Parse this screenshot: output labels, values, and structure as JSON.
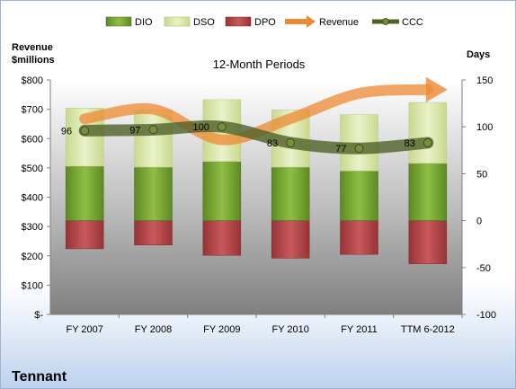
{
  "company": "Tennant",
  "chart_data": {
    "type": "bar",
    "title": "12-Month Periods",
    "left_axis": {
      "label_line1": "Revenue",
      "label_line2": "$millions",
      "ylim": [
        0,
        800
      ],
      "ticks": [
        "$-",
        "$100",
        "$200",
        "$300",
        "$400",
        "$500",
        "$600",
        "$700",
        "$800"
      ]
    },
    "right_axis": {
      "label": "Days",
      "ylim": [
        -100,
        150
      ],
      "ticks": [
        "-100",
        "-50",
        "0",
        "50",
        "100",
        "150"
      ]
    },
    "categories": [
      "FY 2007",
      "FY 2008",
      "FY 2009",
      "FY 2010",
      "FY 2011",
      "TTM 6-2012"
    ],
    "series": [
      {
        "name": "DIO",
        "axis": "days",
        "values": [
          58,
          57,
          63,
          57,
          53,
          61
        ]
      },
      {
        "name": "DSO",
        "axis": "days",
        "values": [
          62,
          61,
          66,
          61,
          60,
          65
        ]
      },
      {
        "name": "DPO",
        "axis": "days",
        "values": [
          -30,
          -26,
          -37,
          -40,
          -36,
          -46
        ]
      },
      {
        "name": "Revenue",
        "axis": "revenue",
        "values": [
          667,
          700,
          596,
          668,
          754,
          767
        ]
      },
      {
        "name": "CCC",
        "axis": "days",
        "values": [
          96,
          97,
          100,
          83,
          77,
          83
        ]
      }
    ],
    "ccc_labels": [
      "96",
      "97",
      "100",
      "83",
      "77",
      "83"
    ],
    "colors": {
      "DIO": "#77a033",
      "DSO": "#d7e4a8",
      "DPO": "#b3474a",
      "Revenue": "#ee8a33",
      "CCC": "#4f6228"
    },
    "legend": [
      "DIO",
      "DSO",
      "DPO",
      "Revenue",
      "CCC"
    ],
    "legend_position": "top",
    "grid": false
  }
}
